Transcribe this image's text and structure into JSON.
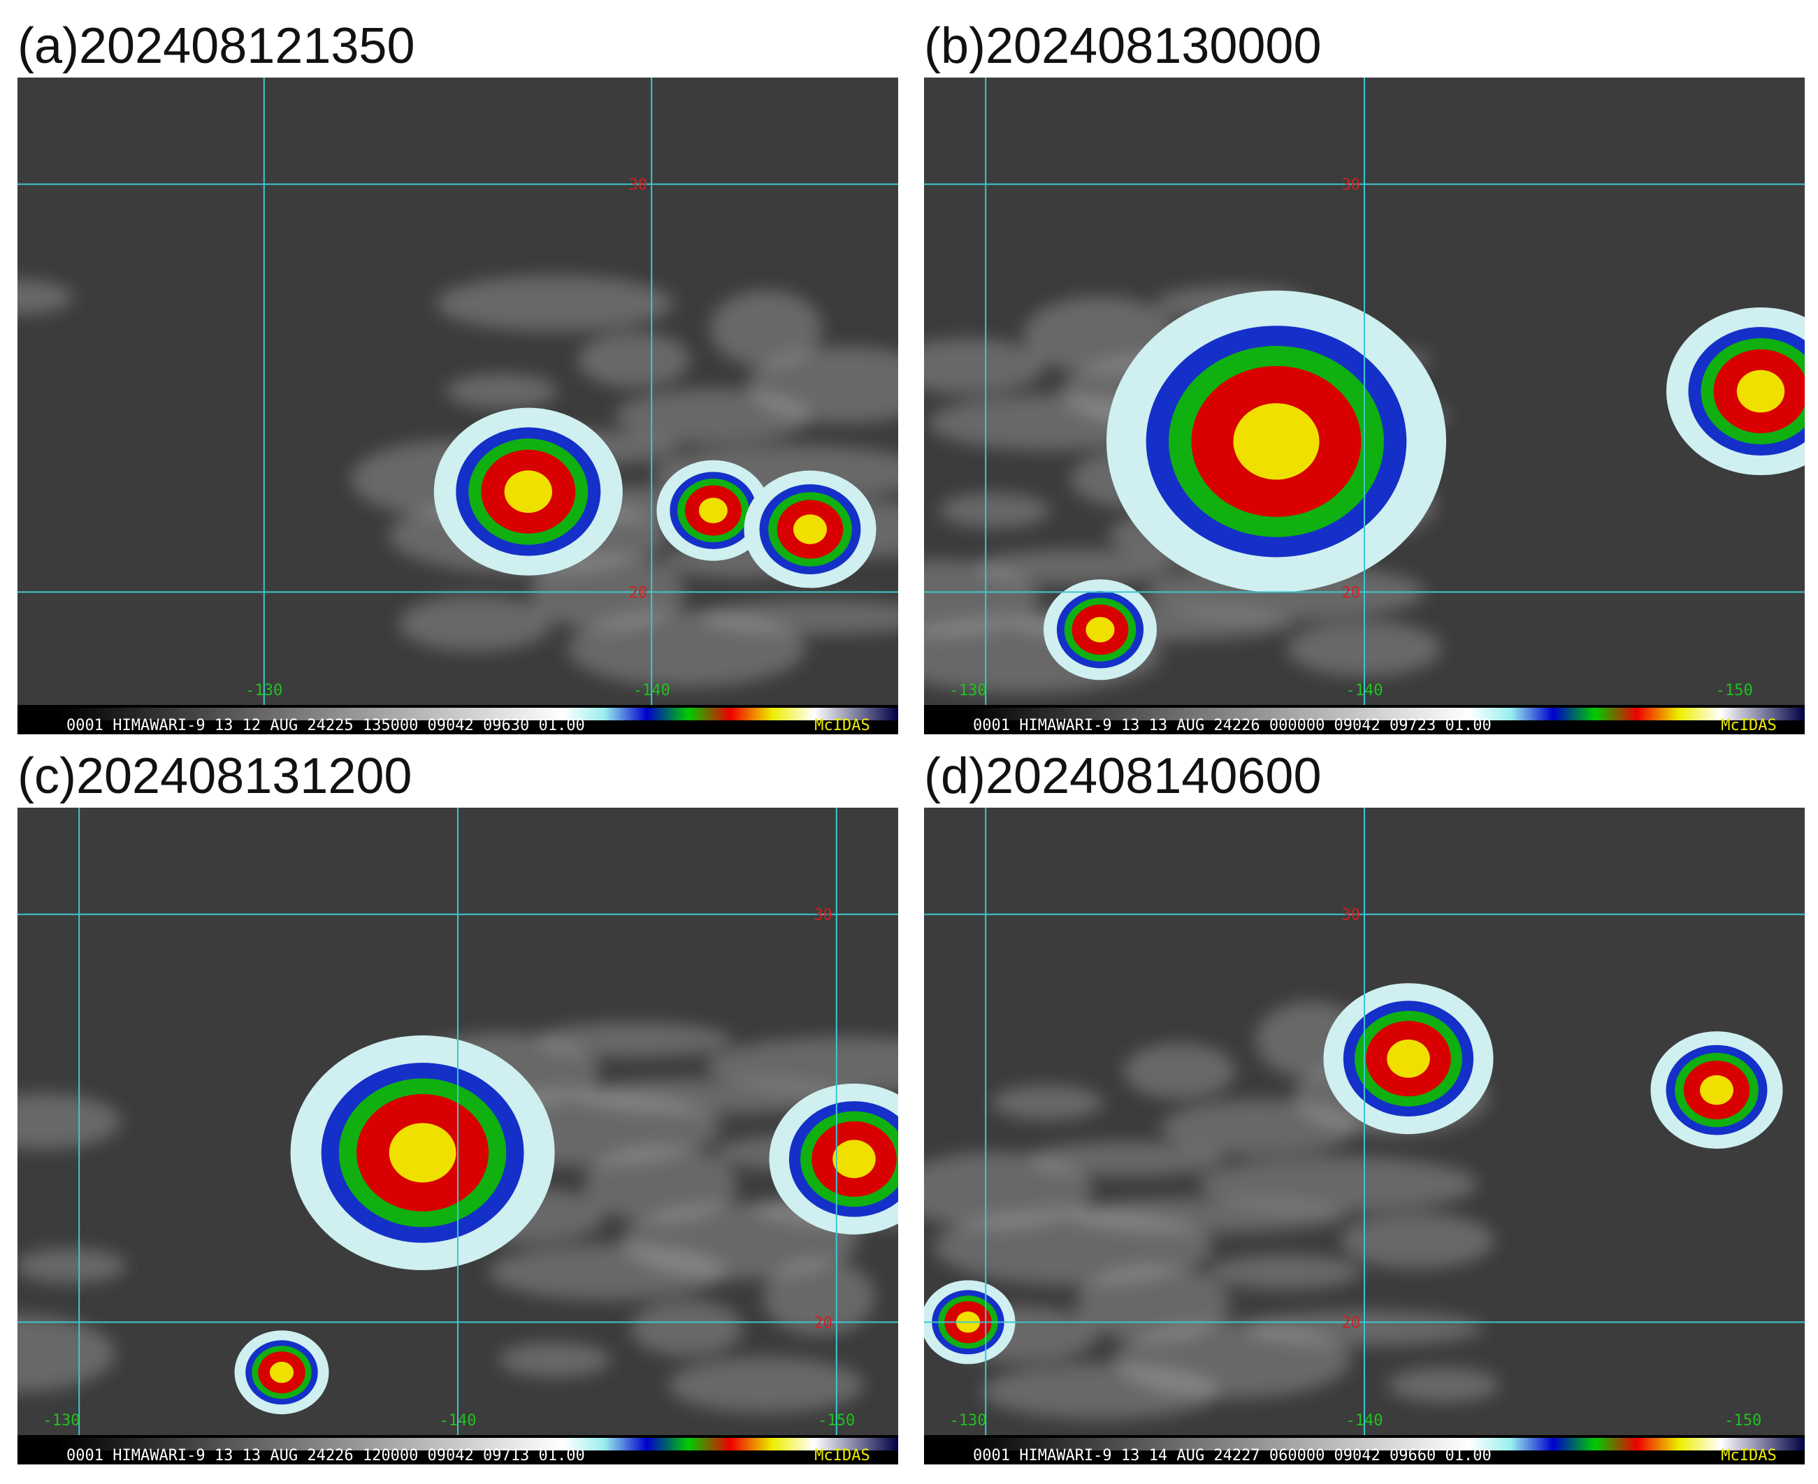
{
  "panels": [
    {
      "label": "(a)202408121350",
      "footer": "0001 HIMAWARI-9 13 12 AUG 24225 135000 09042 09630 01.00",
      "brand": "McIDAS",
      "lat_labels": [
        "30",
        "20"
      ],
      "lon_labels": [
        "-130",
        "-140"
      ]
    },
    {
      "label": "(b)202408130000",
      "footer": "0001 HIMAWARI-9 13 13 AUG 24226 000000 09042 09723 01.00",
      "brand": "McIDAS",
      "lat_labels": [
        "30",
        "20"
      ],
      "lon_labels": [
        "-130",
        "-140",
        "-150"
      ]
    },
    {
      "label": "(c)202408131200",
      "footer": "0001 HIMAWARI-9 13 13 AUG 24226 120000 09042 09713 01.00",
      "brand": "McIDAS",
      "lat_labels": [
        "30",
        "20"
      ],
      "lon_labels": [
        "-130",
        "-140",
        "-150"
      ]
    },
    {
      "label": "(d)202408140600",
      "footer": "0001 HIMAWARI-9 13 14 AUG 24227 060000 09042 09660 01.00",
      "brand": "McIDAS",
      "lat_labels": [
        "30",
        "20"
      ],
      "lon_labels": [
        "-130",
        "-140",
        "-150"
      ]
    }
  ]
}
